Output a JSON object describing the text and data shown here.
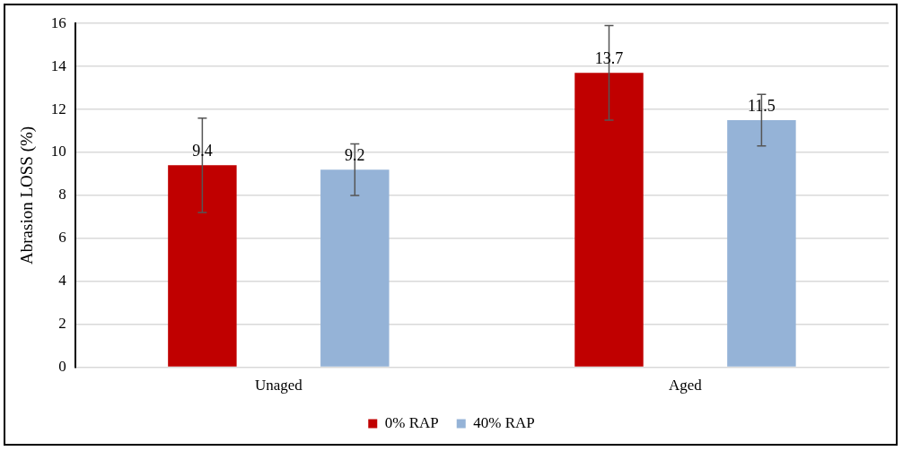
{
  "chart_data": {
    "type": "bar",
    "ylabel": "Abrasion LOSS (%)",
    "categories": [
      "Unaged",
      "Aged"
    ],
    "series": [
      {
        "name": "0% RAP",
        "color": "#c00000",
        "values": [
          9.4,
          13.7
        ],
        "errors": [
          2.2,
          2.2
        ]
      },
      {
        "name": "40% RAP",
        "color": "#95b3d7",
        "values": [
          9.2,
          11.5
        ],
        "errors": [
          1.2,
          1.2
        ]
      }
    ],
    "ylim": [
      0,
      16
    ],
    "yticks": [
      0,
      2,
      4,
      6,
      8,
      10,
      12,
      14,
      16
    ],
    "grid": "y",
    "legend": "bottom",
    "data_labels": true
  }
}
